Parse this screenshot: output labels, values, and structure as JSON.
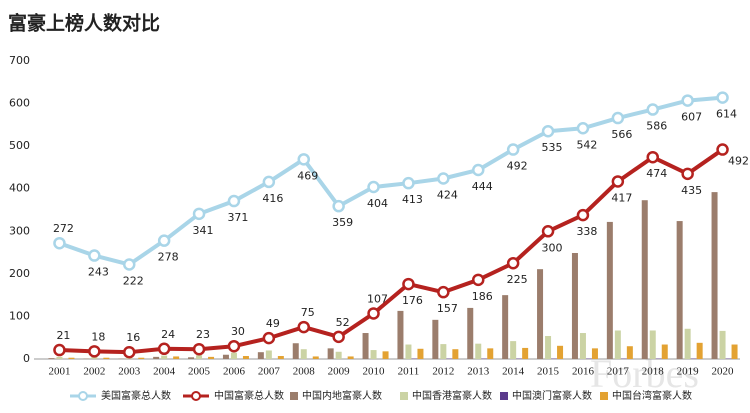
{
  "chart_data": {
    "type": "combo",
    "title": "富豪上榜人数对比",
    "categories": [
      "2001",
      "2002",
      "2003",
      "2004",
      "2005",
      "2006",
      "2007",
      "2008",
      "2009",
      "2010",
      "2011",
      "2012",
      "2013",
      "2014",
      "2015",
      "2016",
      "2017",
      "2018",
      "2019",
      "2020"
    ],
    "ylim": [
      0,
      700
    ],
    "yticks": [
      0,
      100,
      200,
      300,
      400,
      500,
      600,
      700
    ],
    "grid": false,
    "watermark": "Forbes",
    "series": [
      {
        "name": "美国富豪总人数",
        "kind": "line",
        "color": "#a9d5e8",
        "values": [
          272,
          243,
          222,
          278,
          341,
          371,
          416,
          469,
          359,
          404,
          413,
          424,
          444,
          492,
          535,
          542,
          566,
          586,
          607,
          614
        ]
      },
      {
        "name": "中国富豪总人数",
        "kind": "line",
        "color": "#b5221f",
        "values": [
          21,
          18,
          16,
          24,
          23,
          30,
          49,
          75,
          52,
          107,
          176,
          157,
          186,
          225,
          300,
          338,
          417,
          474,
          435,
          492
        ]
      },
      {
        "name": "中国内地富豪人数",
        "kind": "bar",
        "color": "#9b7d6c",
        "values": [
          2,
          1,
          1,
          5,
          4,
          10,
          16,
          37,
          25,
          61,
          113,
          92,
          120,
          150,
          211,
          249,
          322,
          373,
          324,
          392
        ]
      },
      {
        "name": "中国香港富豪人数",
        "kind": "bar",
        "color": "#cbd3a4",
        "values": [
          5,
          6,
          6,
          8,
          9,
          15,
          20,
          23,
          17,
          21,
          34,
          35,
          36,
          42,
          54,
          61,
          67,
          67,
          71,
          66
        ]
      },
      {
        "name": "中国澳门富豪人数",
        "kind": "bar",
        "color": "#5b3a8c",
        "values": [
          0,
          0,
          0,
          0,
          0,
          0,
          0,
          0,
          0,
          0,
          1,
          1,
          1,
          1,
          1,
          1,
          1,
          1,
          1,
          1
        ]
      },
      {
        "name": "中国台湾富豪人数",
        "kind": "bar",
        "color": "#e3a232",
        "values": [
          3,
          3,
          3,
          6,
          5,
          7,
          7,
          6,
          6,
          18,
          24,
          23,
          25,
          26,
          31,
          25,
          30,
          34,
          38,
          34
        ]
      }
    ]
  }
}
